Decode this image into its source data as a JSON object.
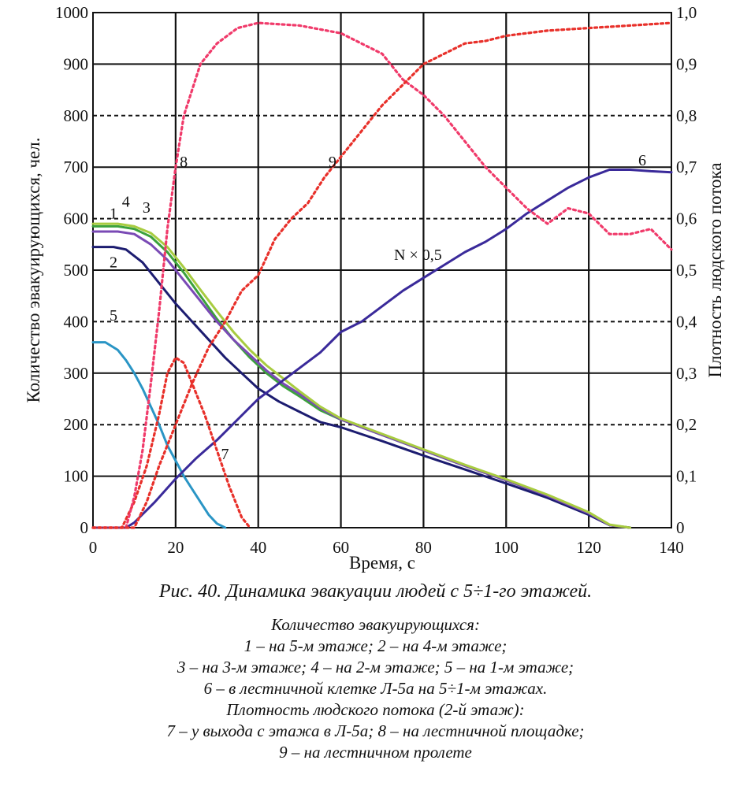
{
  "caption": {
    "title": "Рис. 40. Динамика эвакуации людей с 5÷1-го этажей.",
    "lines": [
      "Количество эвакуирующихся:",
      "1 – на 5-м этаже; 2 – на 4-м этаже;",
      "3 – на 3-м этаже; 4 – на 2-м этаже; 5 – на 1-м этаже;",
      "6 – в лестничной клетке Л-5а на 5÷1-м этажах.",
      "Плотность людского потока (2-й этаж):",
      "7 – у выхода с этажа в Л-5а; 8 – на лестничной площадке;",
      "9 – на лестничном пролете"
    ]
  },
  "chart_data": {
    "type": "line",
    "xlabel": "Время, с",
    "ylabel": "Количество эвакуирующихся, чел.",
    "y2label": "Плотность людского потока",
    "xlim": [
      0,
      140
    ],
    "ylim": [
      0,
      1000
    ],
    "y2lim": [
      0,
      1.0
    ],
    "grid": true,
    "x_ticks": [
      "0",
      "20",
      "40",
      "60",
      "80",
      "100",
      "120",
      "140"
    ],
    "y_ticks": [
      "0",
      "100",
      "200",
      "300",
      "400",
      "500",
      "600",
      "700",
      "800",
      "900",
      "1000"
    ],
    "y2_ticks": [
      "0",
      "0,1",
      "0,2",
      "0,3",
      "0,4",
      "0,5",
      "0,6",
      "0,7",
      "0,8",
      "0,9",
      "1,0"
    ],
    "annotation": "N × 0,5",
    "series": [
      {
        "name": "1",
        "label": "1",
        "label_at": [
          4,
          600
        ],
        "axis": "left",
        "color": "#3ca23c",
        "dash": "",
        "points": [
          [
            0,
            585
          ],
          [
            6,
            585
          ],
          [
            10,
            580
          ],
          [
            14,
            565
          ],
          [
            18,
            535
          ],
          [
            22,
            495
          ],
          [
            26,
            450
          ],
          [
            30,
            405
          ],
          [
            34,
            365
          ],
          [
            38,
            330
          ],
          [
            42,
            300
          ],
          [
            46,
            275
          ],
          [
            50,
            255
          ],
          [
            55,
            228
          ],
          [
            60,
            210
          ],
          [
            70,
            180
          ],
          [
            80,
            150
          ],
          [
            90,
            120
          ],
          [
            100,
            92
          ],
          [
            110,
            62
          ],
          [
            120,
            28
          ],
          [
            125,
            5
          ],
          [
            130,
            0
          ]
        ]
      },
      {
        "name": "2",
        "label": "2",
        "label_at": [
          4,
          505
        ],
        "axis": "left",
        "color": "#1c1c70",
        "dash": "",
        "points": [
          [
            0,
            545
          ],
          [
            5,
            545
          ],
          [
            8,
            540
          ],
          [
            12,
            515
          ],
          [
            16,
            475
          ],
          [
            20,
            435
          ],
          [
            24,
            400
          ],
          [
            28,
            365
          ],
          [
            32,
            330
          ],
          [
            36,
            300
          ],
          [
            40,
            270
          ],
          [
            45,
            245
          ],
          [
            50,
            225
          ],
          [
            55,
            205
          ],
          [
            60,
            195
          ],
          [
            70,
            168
          ],
          [
            80,
            140
          ],
          [
            90,
            113
          ],
          [
            100,
            86
          ],
          [
            110,
            58
          ],
          [
            120,
            25
          ],
          [
            125,
            5
          ],
          [
            130,
            0
          ]
        ]
      },
      {
        "name": "3",
        "label": "3",
        "label_at": [
          12,
          612
        ],
        "axis": "left",
        "color": "#7a4ab5",
        "dash": "",
        "points": [
          [
            0,
            575
          ],
          [
            6,
            575
          ],
          [
            10,
            570
          ],
          [
            14,
            550
          ],
          [
            18,
            520
          ],
          [
            22,
            480
          ],
          [
            26,
            440
          ],
          [
            30,
            400
          ],
          [
            34,
            365
          ],
          [
            38,
            335
          ],
          [
            42,
            305
          ],
          [
            46,
            280
          ],
          [
            50,
            260
          ],
          [
            55,
            232
          ],
          [
            60,
            210
          ],
          [
            70,
            180
          ],
          [
            80,
            150
          ],
          [
            90,
            120
          ],
          [
            100,
            92
          ],
          [
            110,
            62
          ],
          [
            120,
            28
          ],
          [
            125,
            5
          ],
          [
            130,
            0
          ]
        ]
      },
      {
        "name": "4",
        "label": "4",
        "label_at": [
          7,
          623
        ],
        "axis": "left",
        "color": "#a8cc40",
        "dash": "",
        "points": [
          [
            0,
            590
          ],
          [
            6,
            590
          ],
          [
            10,
            585
          ],
          [
            14,
            572
          ],
          [
            18,
            545
          ],
          [
            22,
            505
          ],
          [
            26,
            462
          ],
          [
            30,
            420
          ],
          [
            34,
            380
          ],
          [
            38,
            345
          ],
          [
            42,
            315
          ],
          [
            46,
            290
          ],
          [
            50,
            265
          ],
          [
            55,
            235
          ],
          [
            60,
            212
          ],
          [
            70,
            182
          ],
          [
            80,
            152
          ],
          [
            90,
            122
          ],
          [
            100,
            94
          ],
          [
            110,
            64
          ],
          [
            120,
            30
          ],
          [
            125,
            6
          ],
          [
            130,
            0
          ]
        ]
      },
      {
        "name": "5",
        "label": "5",
        "label_at": [
          4,
          402
        ],
        "axis": "left",
        "color": "#2a95c5",
        "dash": "",
        "points": [
          [
            0,
            360
          ],
          [
            3,
            360
          ],
          [
            6,
            345
          ],
          [
            8,
            325
          ],
          [
            10,
            300
          ],
          [
            12,
            270
          ],
          [
            14,
            235
          ],
          [
            16,
            200
          ],
          [
            18,
            160
          ],
          [
            20,
            130
          ],
          [
            22,
            100
          ],
          [
            24,
            75
          ],
          [
            26,
            50
          ],
          [
            28,
            25
          ],
          [
            30,
            8
          ],
          [
            32,
            0
          ]
        ]
      },
      {
        "name": "6",
        "label": "6",
        "label_at": [
          132,
          703
        ],
        "axis": "left",
        "color": "#3a2a9a",
        "dash": "",
        "points": [
          [
            0,
            0
          ],
          [
            8,
            0
          ],
          [
            10,
            10
          ],
          [
            15,
            50
          ],
          [
            20,
            95
          ],
          [
            25,
            135
          ],
          [
            30,
            170
          ],
          [
            35,
            210
          ],
          [
            40,
            250
          ],
          [
            45,
            280
          ],
          [
            50,
            310
          ],
          [
            55,
            340
          ],
          [
            60,
            380
          ],
          [
            65,
            400
          ],
          [
            70,
            430
          ],
          [
            75,
            460
          ],
          [
            80,
            485
          ],
          [
            85,
            510
          ],
          [
            90,
            535
          ],
          [
            95,
            555
          ],
          [
            100,
            580
          ],
          [
            105,
            610
          ],
          [
            110,
            635
          ],
          [
            115,
            660
          ],
          [
            120,
            680
          ],
          [
            125,
            695
          ],
          [
            130,
            695
          ],
          [
            135,
            692
          ],
          [
            140,
            690
          ]
        ]
      },
      {
        "name": "7",
        "label": "7",
        "label_at": [
          31,
          133
        ],
        "axis": "right",
        "color": "#e8302a",
        "dash": "3 4",
        "points": [
          [
            0,
            0
          ],
          [
            7,
            0
          ],
          [
            10,
            0.05
          ],
          [
            13,
            0.12
          ],
          [
            16,
            0.22
          ],
          [
            18,
            0.3
          ],
          [
            20,
            0.33
          ],
          [
            22,
            0.32
          ],
          [
            24,
            0.28
          ],
          [
            27,
            0.22
          ],
          [
            30,
            0.15
          ],
          [
            33,
            0.08
          ],
          [
            36,
            0.02
          ],
          [
            38,
            0
          ]
        ]
      },
      {
        "name": "8",
        "label": "8",
        "label_at": [
          21,
          700
        ],
        "axis": "right",
        "color": "#f03a6a",
        "dash": "3 4",
        "points": [
          [
            0,
            0
          ],
          [
            8,
            0
          ],
          [
            10,
            0.06
          ],
          [
            12,
            0.15
          ],
          [
            14,
            0.28
          ],
          [
            16,
            0.42
          ],
          [
            18,
            0.58
          ],
          [
            20,
            0.7
          ],
          [
            22,
            0.8
          ],
          [
            26,
            0.9
          ],
          [
            30,
            0.94
          ],
          [
            35,
            0.97
          ],
          [
            40,
            0.98
          ],
          [
            50,
            0.975
          ],
          [
            60,
            0.96
          ],
          [
            70,
            0.92
          ],
          [
            75,
            0.87
          ],
          [
            80,
            0.84
          ],
          [
            85,
            0.8
          ],
          [
            90,
            0.75
          ],
          [
            95,
            0.7
          ],
          [
            100,
            0.66
          ],
          [
            105,
            0.62
          ],
          [
            110,
            0.59
          ],
          [
            115,
            0.62
          ],
          [
            120,
            0.61
          ],
          [
            125,
            0.57
          ],
          [
            130,
            0.57
          ],
          [
            135,
            0.58
          ],
          [
            140,
            0.54
          ]
        ]
      },
      {
        "name": "9",
        "label": "9",
        "label_at": [
          57,
          700
        ],
        "axis": "right",
        "color": "#e8302a",
        "dash": "3 4",
        "points": [
          [
            0,
            0
          ],
          [
            10,
            0
          ],
          [
            13,
            0.05
          ],
          [
            16,
            0.12
          ],
          [
            20,
            0.2
          ],
          [
            24,
            0.28
          ],
          [
            28,
            0.35
          ],
          [
            32,
            0.4
          ],
          [
            36,
            0.46
          ],
          [
            40,
            0.49
          ],
          [
            44,
            0.56
          ],
          [
            48,
            0.6
          ],
          [
            52,
            0.63
          ],
          [
            56,
            0.68
          ],
          [
            60,
            0.72
          ],
          [
            65,
            0.77
          ],
          [
            70,
            0.82
          ],
          [
            75,
            0.86
          ],
          [
            80,
            0.9
          ],
          [
            85,
            0.92
          ],
          [
            90,
            0.94
          ],
          [
            95,
            0.945
          ],
          [
            100,
            0.955
          ],
          [
            110,
            0.965
          ],
          [
            120,
            0.97
          ],
          [
            130,
            0.975
          ],
          [
            140,
            0.98
          ]
        ]
      }
    ]
  }
}
